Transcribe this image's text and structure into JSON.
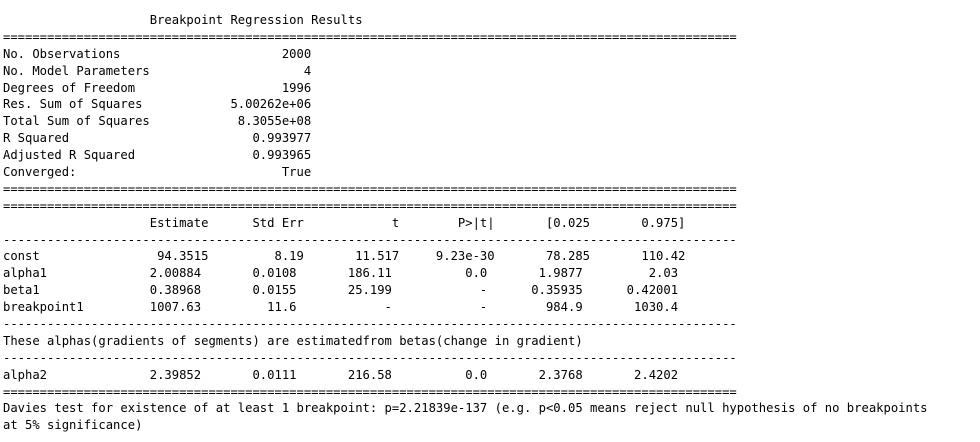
{
  "window": {
    "lines": [
      "                    Breakpoint Regression Results                    ",
      "====================================================================================================",
      "No. Observations                      2000",
      "No. Model Parameters                     4",
      "Degrees of Freedom                    1996",
      "Res. Sum of Squares            5.00262e+06",
      "Total Sum of Squares            8.3055e+08",
      "R Squared                         0.993977",
      "Adjusted R Squared                0.993965",
      "Converged:                            True",
      "====================================================================================================",
      "====================================================================================================",
      "                    Estimate      Std Err            t        P>|t|       [0.025       0.975]",
      "----------------------------------------------------------------------------------------------------",
      "const                94.3515         8.19       11.517     9.23e-30       78.285       110.42",
      "alpha1              2.00884       0.0108       186.11          0.0       1.9877         2.03",
      "beta1               0.38968       0.0155       25.199            -      0.35935      0.42001",
      "breakpoint1         1007.63         11.6            -            -        984.9       1030.4",
      "----------------------------------------------------------------------------------------------------",
      "These alphas(gradients of segments) are estimatedfrom betas(change in gradient)",
      "----------------------------------------------------------------------------------------------------",
      "alpha2              2.39852       0.0111       216.58          0.0       2.3768       2.4202",
      "====================================================================================================",
      "Davies test for existence of at least 1 breakpoint: p=2.21839e-137 (e.g. p<0.05 means reject null hypothesis of no breakpoints",
      "at 5% significance)"
    ]
  }
}
